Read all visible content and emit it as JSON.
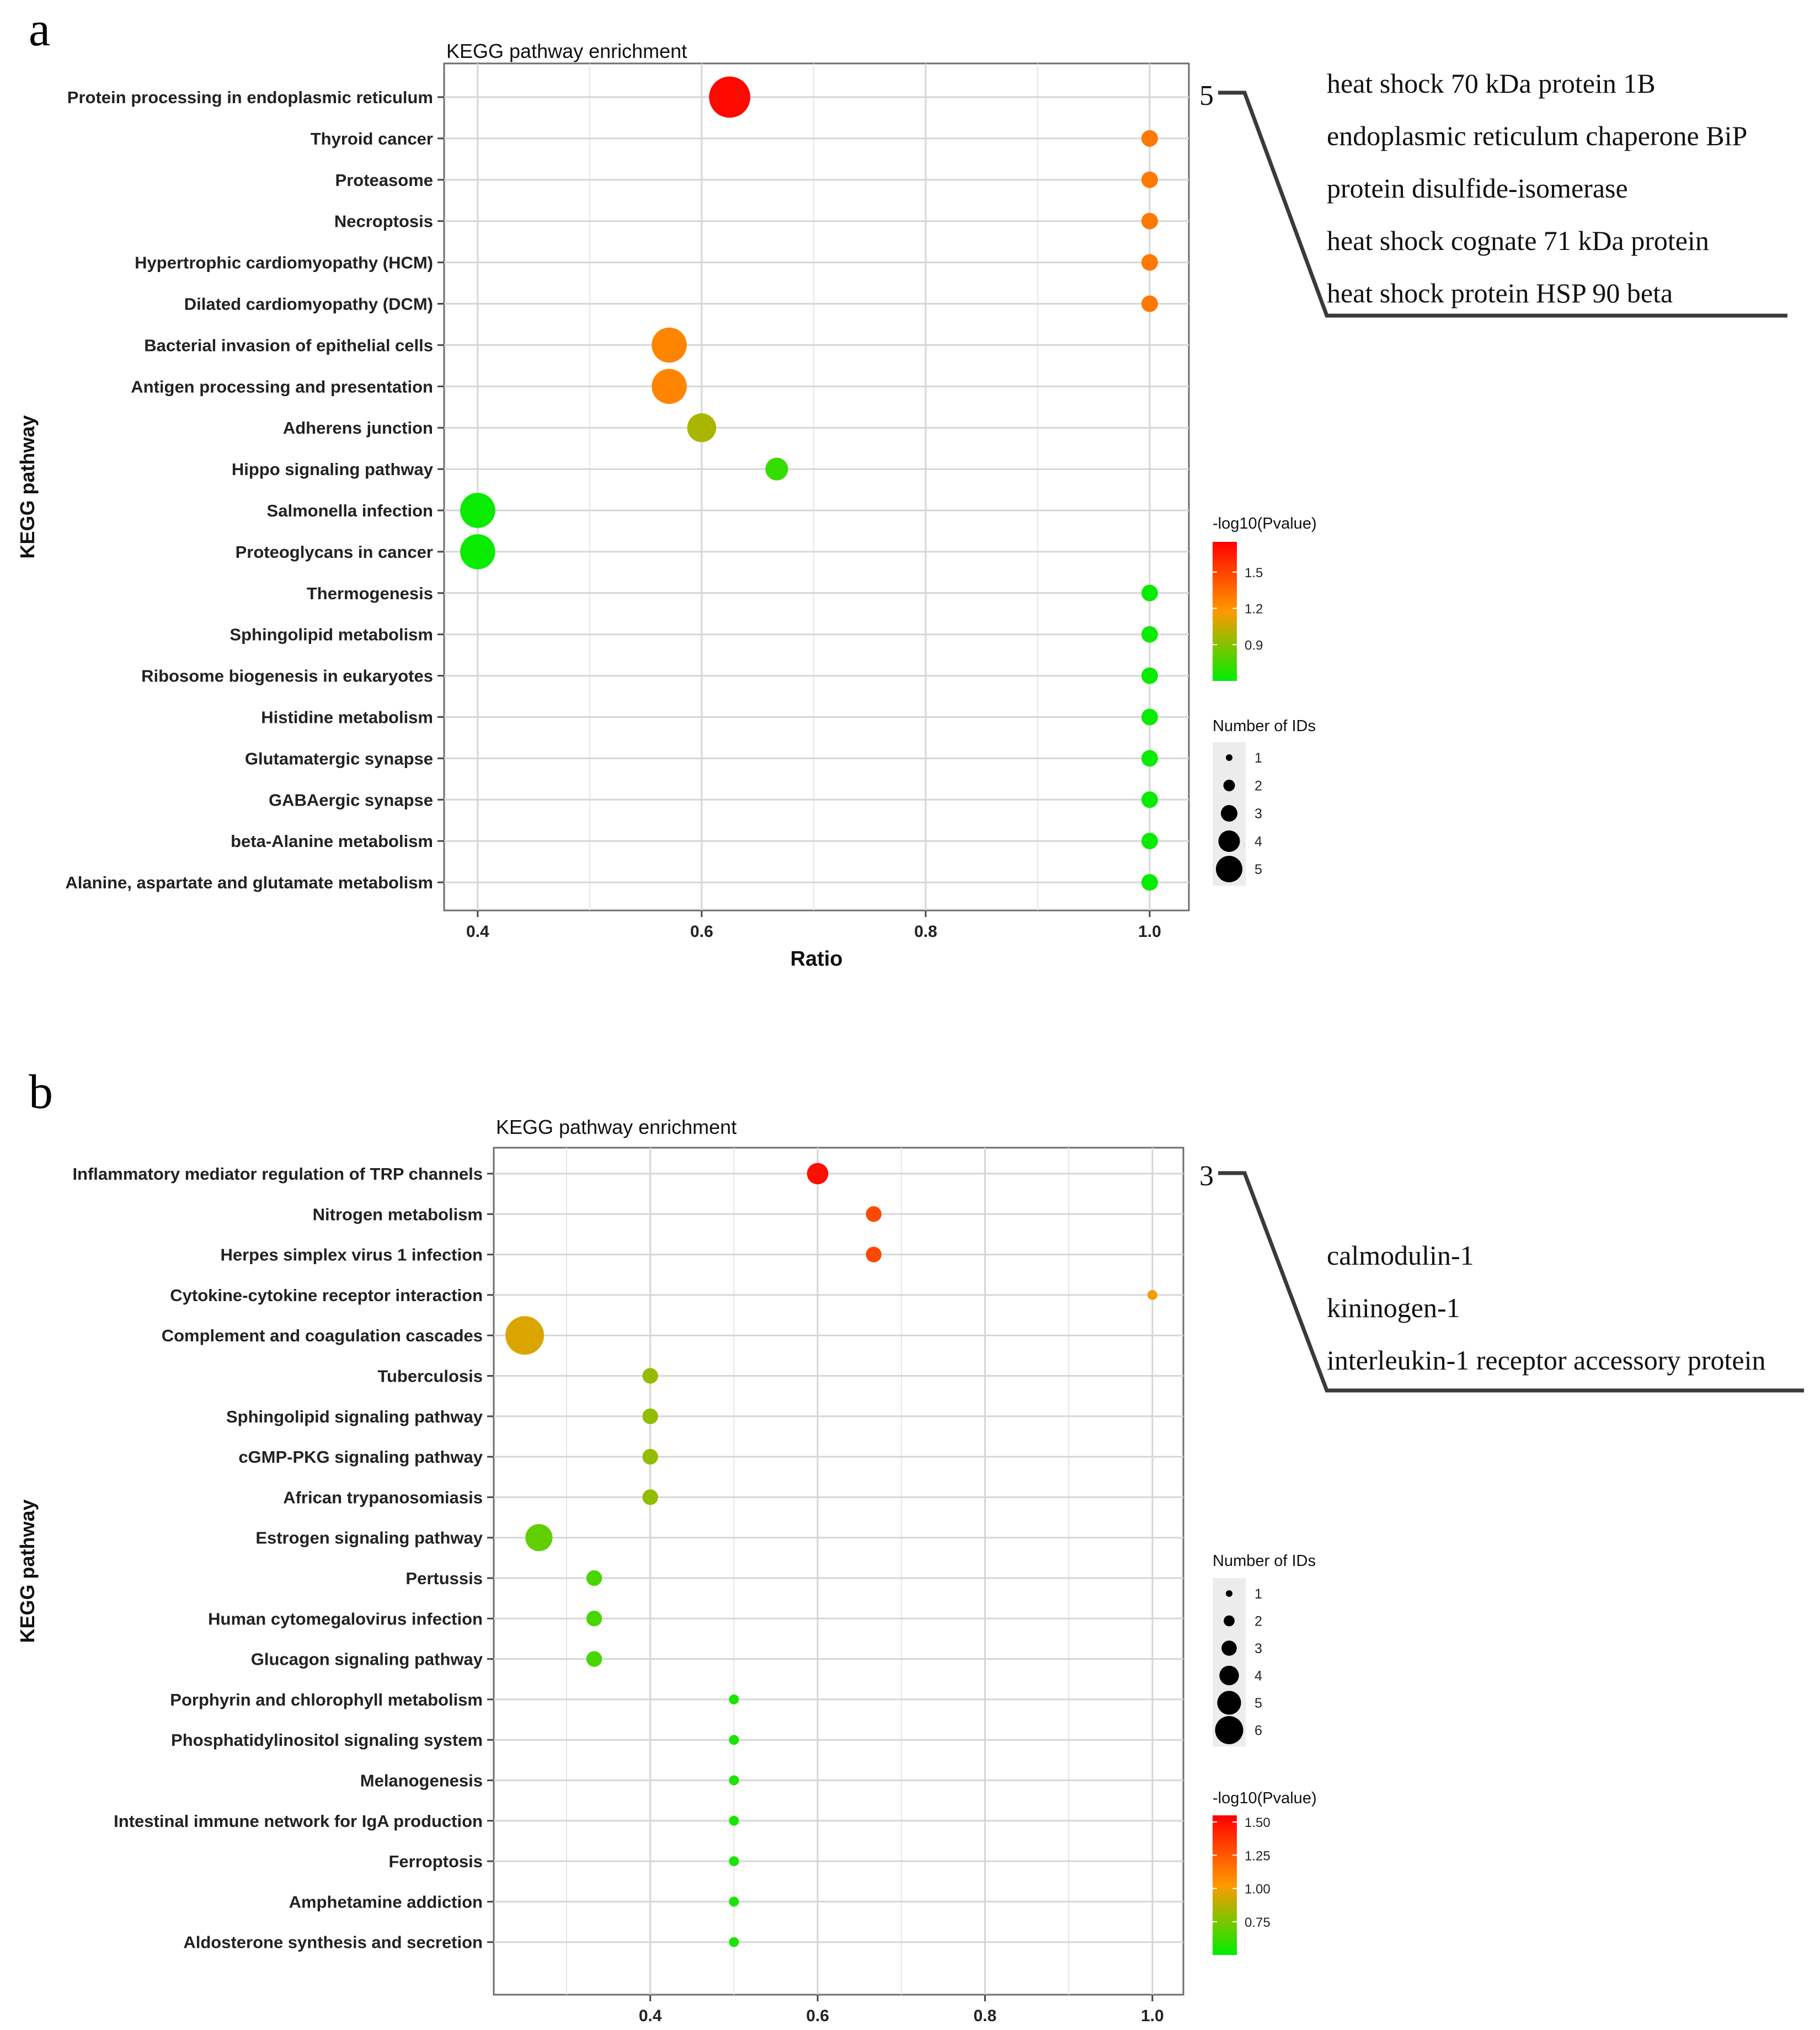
{
  "chart_data": [
    {
      "type": "scatter",
      "panel_label": "a",
      "title": "KEGG pathway enrichment",
      "xlabel": "Ratio",
      "ylabel": "KEGG pathway",
      "xlim": [
        0.37,
        1.035
      ],
      "xticks": [
        "0.4",
        "0.6",
        "0.8",
        "1.0"
      ],
      "xtick_values": [
        0.4,
        0.6,
        0.8,
        1.0
      ],
      "grid": true,
      "points": [
        {
          "pathway": "Protein processing in endoplasmic reticulum",
          "ratio": 0.625,
          "count": 5,
          "neglog10p": 1.72
        },
        {
          "pathway": "Thyroid cancer",
          "ratio": 1.0,
          "count": 1,
          "neglog10p": 1.3
        },
        {
          "pathway": "Proteasome",
          "ratio": 1.0,
          "count": 1,
          "neglog10p": 1.3
        },
        {
          "pathway": "Necroptosis",
          "ratio": 1.0,
          "count": 1,
          "neglog10p": 1.3
        },
        {
          "pathway": "Hypertrophic cardiomyopathy (HCM)",
          "ratio": 1.0,
          "count": 1,
          "neglog10p": 1.3
        },
        {
          "pathway": "Dilated cardiomyopathy (DCM)",
          "ratio": 1.0,
          "count": 1,
          "neglog10p": 1.3
        },
        {
          "pathway": "Bacterial invasion of epithelial cells",
          "ratio": 0.571,
          "count": 4,
          "neglog10p": 1.25
        },
        {
          "pathway": "Antigen processing and presentation",
          "ratio": 0.571,
          "count": 4,
          "neglog10p": 1.25
        },
        {
          "pathway": "Adherens junction",
          "ratio": 0.6,
          "count": 3,
          "neglog10p": 0.98
        },
        {
          "pathway": "Hippo signaling pathway",
          "ratio": 0.667,
          "count": 2,
          "neglog10p": 0.72
        },
        {
          "pathway": "Salmonella infection",
          "ratio": 0.4,
          "count": 4,
          "neglog10p": 0.62
        },
        {
          "pathway": "Proteoglycans in cancer",
          "ratio": 0.4,
          "count": 4,
          "neglog10p": 0.62
        },
        {
          "pathway": "Thermogenesis",
          "ratio": 1.0,
          "count": 1,
          "neglog10p": 0.62
        },
        {
          "pathway": "Sphingolipid metabolism",
          "ratio": 1.0,
          "count": 1,
          "neglog10p": 0.62
        },
        {
          "pathway": "Ribosome biogenesis in eukaryotes",
          "ratio": 1.0,
          "count": 1,
          "neglog10p": 0.62
        },
        {
          "pathway": "Histidine metabolism",
          "ratio": 1.0,
          "count": 1,
          "neglog10p": 0.62
        },
        {
          "pathway": "Glutamatergic synapse",
          "ratio": 1.0,
          "count": 1,
          "neglog10p": 0.62
        },
        {
          "pathway": "GABAergic synapse",
          "ratio": 1.0,
          "count": 1,
          "neglog10p": 0.62
        },
        {
          "pathway": "beta-Alanine metabolism",
          "ratio": 1.0,
          "count": 1,
          "neglog10p": 0.62
        },
        {
          "pathway": "Alanine, aspartate and glutamate metabolism",
          "ratio": 1.0,
          "count": 1,
          "neglog10p": 0.62
        }
      ],
      "size_legend": {
        "title": "Number of IDs",
        "values": [
          1,
          2,
          3,
          4,
          5
        ]
      },
      "color_legend": {
        "title": "-log10(Pvalue)",
        "ticks": [
          "1.5",
          "1.2",
          "0.9"
        ],
        "tick_values": [
          1.5,
          1.2,
          0.9
        ],
        "range": [
          0.6,
          1.75
        ],
        "low_color": "#00ee00",
        "mid_color": "#ff9900",
        "high_color": "#ff0000"
      },
      "annotation": {
        "count": "5",
        "proteins": [
          "heat shock 70 kDa protein 1B",
          "endoplasmic reticulum chaperone BiP",
          "protein disulfide-isomerase",
          "heat shock cognate 71 kDa protein",
          "heat shock protein HSP 90 beta"
        ]
      }
    },
    {
      "type": "scatter",
      "panel_label": "b",
      "title": "KEGG pathway enrichment",
      "xlabel": "Ratio",
      "ylabel": "KEGG pathway",
      "xlim": [
        0.213,
        1.037
      ],
      "xticks": [
        "0.4",
        "0.6",
        "0.8",
        "1.0"
      ],
      "xtick_values": [
        0.4,
        0.6,
        0.8,
        1.0
      ],
      "grid": true,
      "points": [
        {
          "pathway": "Inflammatory mediator regulation of TRP channels",
          "ratio": 0.6,
          "count": 3,
          "neglog10p": 1.5
        },
        {
          "pathway": "Nitrogen metabolism",
          "ratio": 0.667,
          "count": 2,
          "neglog10p": 1.3
        },
        {
          "pathway": "Herpes simplex virus 1 infection",
          "ratio": 0.667,
          "count": 2,
          "neglog10p": 1.3
        },
        {
          "pathway": "Cytokine-cytokine receptor interaction",
          "ratio": 1.0,
          "count": 1,
          "neglog10p": 1.0
        },
        {
          "pathway": "Complement and coagulation cascades",
          "ratio": 0.25,
          "count": 6,
          "neglog10p": 0.95
        },
        {
          "pathway": "Tuberculosis",
          "ratio": 0.4,
          "count": 2,
          "neglog10p": 0.8
        },
        {
          "pathway": "Sphingolipid signaling pathway",
          "ratio": 0.4,
          "count": 2,
          "neglog10p": 0.8
        },
        {
          "pathway": "cGMP-PKG signaling pathway",
          "ratio": 0.4,
          "count": 2,
          "neglog10p": 0.8
        },
        {
          "pathway": "African trypanosomiasis",
          "ratio": 0.4,
          "count": 2,
          "neglog10p": 0.8
        },
        {
          "pathway": "Estrogen signaling pathway",
          "ratio": 0.267,
          "count": 4,
          "neglog10p": 0.7
        },
        {
          "pathway": "Pertussis",
          "ratio": 0.333,
          "count": 2,
          "neglog10p": 0.65
        },
        {
          "pathway": "Human cytomegalovirus infection",
          "ratio": 0.333,
          "count": 2,
          "neglog10p": 0.65
        },
        {
          "pathway": "Glucagon signaling pathway",
          "ratio": 0.333,
          "count": 2,
          "neglog10p": 0.65
        },
        {
          "pathway": "Porphyrin and chlorophyll metabolism",
          "ratio": 0.5,
          "count": 1,
          "neglog10p": 0.55
        },
        {
          "pathway": "Phosphatidylinositol signaling system",
          "ratio": 0.5,
          "count": 1,
          "neglog10p": 0.55
        },
        {
          "pathway": "Melanogenesis",
          "ratio": 0.5,
          "count": 1,
          "neglog10p": 0.55
        },
        {
          "pathway": "Intestinal immune network for IgA production",
          "ratio": 0.5,
          "count": 1,
          "neglog10p": 0.55
        },
        {
          "pathway": "Ferroptosis",
          "ratio": 0.5,
          "count": 1,
          "neglog10p": 0.55
        },
        {
          "pathway": "Amphetamine addiction",
          "ratio": 0.5,
          "count": 1,
          "neglog10p": 0.55
        },
        {
          "pathway": "Aldosterone synthesis and secretion",
          "ratio": 0.5,
          "count": 1,
          "neglog10p": 0.55
        }
      ],
      "size_legend": {
        "title": "Number of IDs",
        "values": [
          1,
          2,
          3,
          4,
          5,
          6
        ]
      },
      "color_legend": {
        "title": "-log10(Pvalue)",
        "ticks": [
          "1.50",
          "1.25",
          "1.00",
          "0.75"
        ],
        "tick_values": [
          1.5,
          1.25,
          1.0,
          0.75
        ],
        "range": [
          0.5,
          1.55
        ],
        "low_color": "#00ee00",
        "mid_color": "#ff9900",
        "high_color": "#ff0000"
      },
      "annotation": {
        "count": "3",
        "proteins": [
          "calmodulin-1",
          "kininogen-1",
          "interleukin-1 receptor accessory protein"
        ]
      }
    }
  ]
}
